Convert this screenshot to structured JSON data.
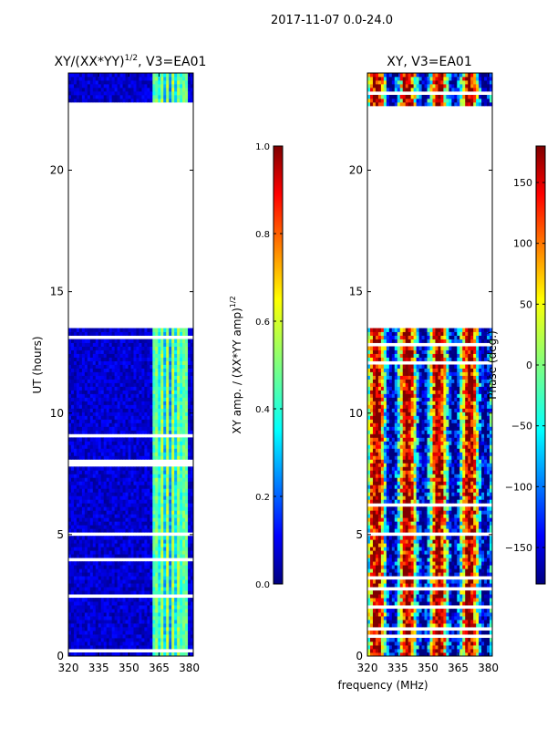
{
  "suptitle": "2017-11-07 0.0-24.0",
  "xlabel_shared": "frequency (MHz)",
  "colors": {
    "jet": [
      "#00007f",
      "#0000ff",
      "#007fff",
      "#00ffff",
      "#7fff7f",
      "#ffff00",
      "#ff7f00",
      "#ff0000",
      "#7f0000"
    ],
    "blank": "#ffffff"
  },
  "chart_data": [
    {
      "type": "heatmap",
      "title_main": "XY/(XX*YY)",
      "title_sup": "1/2",
      "title_tail": ", V3=EA01",
      "ylabel": "UT (hours)",
      "xlim": [
        320,
        382
      ],
      "ylim": [
        0,
        24
      ],
      "xticks": [
        320,
        335,
        350,
        365,
        380
      ],
      "yticks": [
        0,
        5,
        10,
        15,
        20
      ],
      "colorbar": {
        "label_main": "XY amp. / (XX*YY amp)",
        "label_sup": "1/2",
        "range": [
          0.0,
          1.0
        ],
        "ticks": [
          0.0,
          0.2,
          0.4,
          0.6,
          0.8,
          1.0
        ],
        "tick_labels": [
          "0.0",
          "0.2",
          "0.4",
          "0.6",
          "0.8",
          "1.0"
        ]
      },
      "data_gaps_hours": [
        [
          13.5,
          22.7
        ]
      ],
      "description_of_values": "mostly low amplitude (~0.05-0.15); stripes of higher amplitude (~0.3-0.6) near 365-378 MHz"
    },
    {
      "type": "heatmap",
      "title_main": "XY, V3=EA01",
      "xlim": [
        320,
        382
      ],
      "ylim": [
        0,
        24
      ],
      "xticks": [
        320,
        335,
        350,
        365,
        380
      ],
      "yticks": [
        0,
        5,
        10,
        15,
        20
      ],
      "colorbar": {
        "label_main": "Phase (deg.)",
        "range": [
          -180,
          180
        ],
        "ticks": [
          -150,
          -100,
          -50,
          0,
          50,
          100,
          150
        ],
        "tick_labels": [
          "−150",
          "−100",
          "−50",
          "0",
          "50",
          "100",
          "150"
        ]
      },
      "data_gaps_hours": [
        [
          13.5,
          22.7
        ]
      ],
      "description_of_values": "phase varies across frequency from about -180 to 180 deg, banded vertical stripes"
    }
  ]
}
